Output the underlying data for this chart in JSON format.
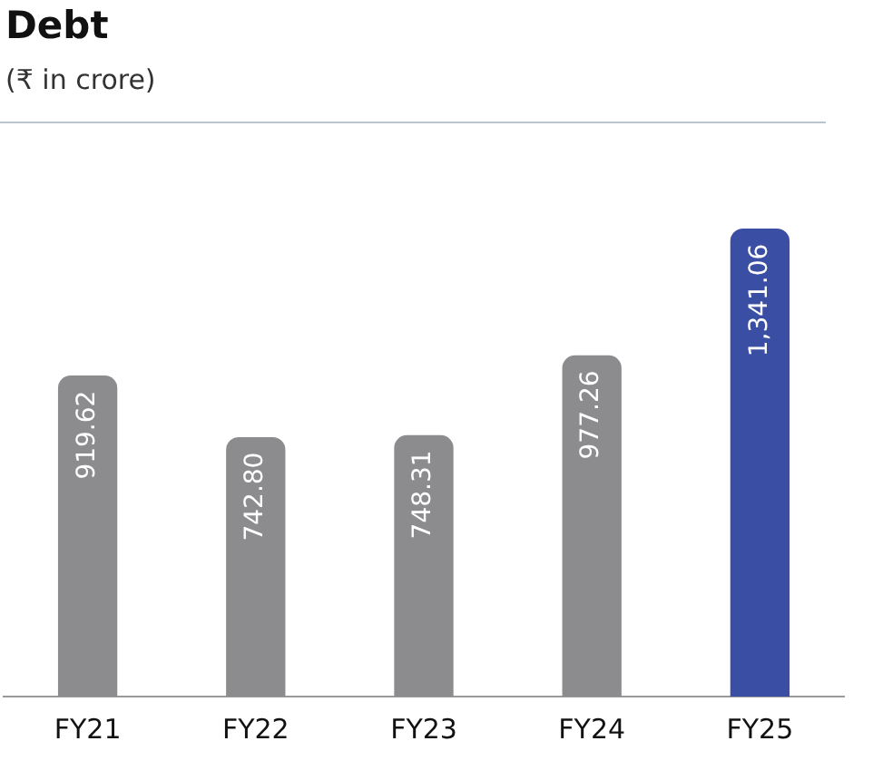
{
  "chart_data": {
    "type": "bar",
    "title": "Debt",
    "subtitle": "(₹ in crore)",
    "categories": [
      "FY21",
      "FY22",
      "FY23",
      "FY24",
      "FY25"
    ],
    "values": [
      919.62,
      742.8,
      748.31,
      977.26,
      1341.06
    ],
    "value_labels": [
      "919.62",
      "742.80",
      "748.31",
      "977.26",
      "1,341.06"
    ],
    "colors": [
      "#8c8c8e",
      "#8c8c8e",
      "#8c8c8e",
      "#8c8c8e",
      "#3a4ea3"
    ],
    "grid": false,
    "legend": false
  }
}
